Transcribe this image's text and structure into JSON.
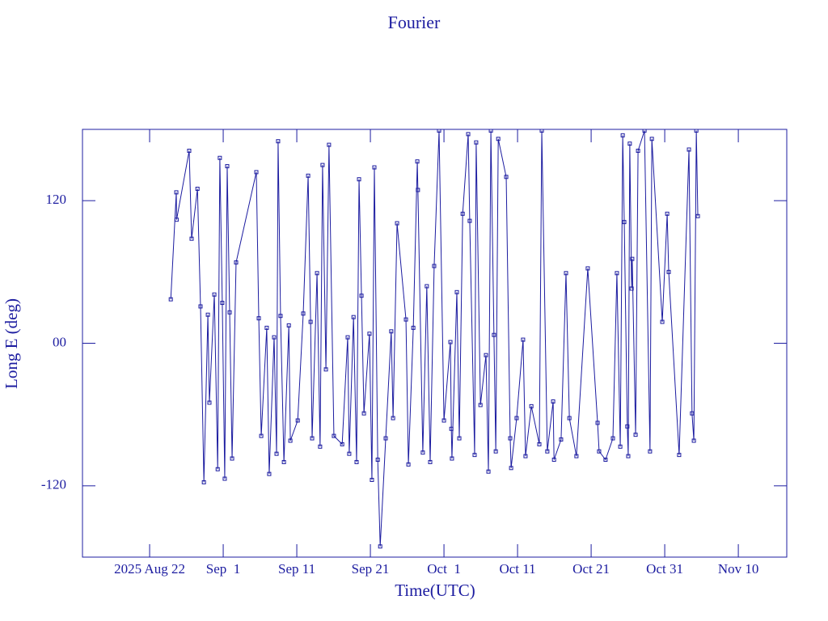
{
  "chart_data": {
    "type": "line",
    "title": "Fourier",
    "xlabel": "Time(UTC)",
    "ylabel": "Long E (deg)",
    "color": "#1c1ca0",
    "xlim": [
      "2025-08-12T21:00",
      "2025-11-16T14:00"
    ],
    "ylim": [
      -180,
      180
    ],
    "xticks": [
      {
        "value": "2025-08-22T00:00",
        "label": "2025 Aug 22"
      },
      {
        "value": "2025-09-01T00:00",
        "label": "Sep  1"
      },
      {
        "value": "2025-09-11T00:00",
        "label": "Sep 11"
      },
      {
        "value": "2025-09-21T00:00",
        "label": "Sep 21"
      },
      {
        "value": "2025-10-01T00:00",
        "label": "Oct  1"
      },
      {
        "value": "2025-10-11T00:00",
        "label": "Oct 11"
      },
      {
        "value": "2025-10-21T00:00",
        "label": "Oct 21"
      },
      {
        "value": "2025-10-31T00:00",
        "label": "Oct 31"
      },
      {
        "value": "2025-11-10T00:00",
        "label": "Nov 10"
      }
    ],
    "yticks": [
      -120,
      {
        "value": 0,
        "label": "00"
      },
      120
    ],
    "x": [
      "2025-08-24T21:00",
      "2025-08-25T15:00",
      "2025-08-25T16:00",
      "2025-08-27T09:00",
      "2025-08-27T17:00",
      "2025-08-28T12:00",
      "2025-08-28T22:00",
      "2025-08-29T09:00",
      "2025-08-29T22:00",
      "2025-08-30T03:00",
      "2025-08-30T19:00",
      "2025-08-31T06:00",
      "2025-08-31T13:00",
      "2025-08-31T21:00",
      "2025-09-01T05:00",
      "2025-09-01T13:00",
      "2025-09-01T21:00",
      "2025-09-02T05:00",
      "2025-09-02T18:00",
      "2025-09-05T12:00",
      "2025-09-05T20:00",
      "2025-09-06T04:00",
      "2025-09-06T22:00",
      "2025-09-07T06:00",
      "2025-09-07T22:00",
      "2025-09-08T06:00",
      "2025-09-08T11:00",
      "2025-09-08T19:00",
      "2025-09-09T06:00",
      "2025-09-09T22:00",
      "2025-09-10T03:00",
      "2025-09-11T03:00",
      "2025-09-11T21:00",
      "2025-09-12T13:00",
      "2025-09-12T21:00",
      "2025-09-13T02:00",
      "2025-09-13T18:00",
      "2025-09-14T04:00",
      "2025-09-14T12:00",
      "2025-09-14T23:00",
      "2025-09-15T09:00",
      "2025-09-16T01:00",
      "2025-09-17T04:00",
      "2025-09-17T22:00",
      "2025-09-18T03:00",
      "2025-09-18T17:00",
      "2025-09-19T03:00",
      "2025-09-19T11:00",
      "2025-09-19T19:00",
      "2025-09-20T03:00",
      "2025-09-20T21:00",
      "2025-09-21T05:00",
      "2025-09-21T13:00",
      "2025-09-22T00:00",
      "2025-09-22T08:00",
      "2025-09-23T02:00",
      "2025-09-23T20:00",
      "2025-09-24T02:00",
      "2025-09-24T15:00",
      "2025-09-25T20:00",
      "2025-09-26T04:00",
      "2025-09-26T20:00",
      "2025-09-27T09:00",
      "2025-09-27T11:00",
      "2025-09-28T03:00",
      "2025-09-28T16:00",
      "2025-09-29T03:00",
      "2025-09-29T16:00",
      "2025-09-30T08:00",
      "2025-10-01T00:00",
      "2025-10-01T21:00",
      "2025-10-02T00:00",
      "2025-10-02T02:00",
      "2025-10-02T18:00",
      "2025-10-03T02:00",
      "2025-10-03T13:00",
      "2025-10-04T07:00",
      "2025-10-04T12:00",
      "2025-10-05T04:00",
      "2025-10-05T09:00",
      "2025-10-05T23:00",
      "2025-10-06T17:00",
      "2025-10-07T01:00",
      "2025-10-07T09:00",
      "2025-10-07T19:00",
      "2025-10-08T01:00",
      "2025-10-08T09:00",
      "2025-10-09T11:00",
      "2025-10-10T00:00",
      "2025-10-10T03:00",
      "2025-10-10T21:00",
      "2025-10-11T18:00",
      "2025-10-12T02:00",
      "2025-10-12T21:00",
      "2025-10-13T23:00",
      "2025-10-14T07:00",
      "2025-10-15T01:00",
      "2025-10-15T20:00",
      "2025-10-15T23:00",
      "2025-10-16T22:00",
      "2025-10-17T14:00",
      "2025-10-18T01:00",
      "2025-10-19T00:00",
      "2025-10-20T13:00",
      "2025-10-21T21:00",
      "2025-10-22T02:00",
      "2025-10-22T23:00",
      "2025-10-23T23:00",
      "2025-10-24T12:00",
      "2025-10-24T23:00",
      "2025-10-25T07:00",
      "2025-10-25T12:00",
      "2025-10-25T22:00",
      "2025-10-26T01:00",
      "2025-10-26T06:00",
      "2025-10-26T12:00",
      "2025-10-26T14:00",
      "2025-10-27T01:00",
      "2025-10-27T09:00",
      "2025-10-28T06:00",
      "2025-10-29T00:00",
      "2025-10-29T06:00",
      "2025-10-30T16:00",
      "2025-10-31T08:00",
      "2025-10-31T13:00",
      "2025-11-01T23:00",
      "2025-11-03T07:00",
      "2025-11-03T17:00",
      "2025-11-03T23:00",
      "2025-11-04T07:00",
      "2025-11-04T12:00"
    ],
    "values": [
      37,
      127,
      104,
      162,
      88,
      130,
      31,
      -117,
      24,
      -50,
      41,
      -106,
      156,
      34,
      -114,
      149,
      26,
      -97,
      68,
      144,
      21,
      -78,
      13,
      -110,
      5,
      -93,
      170,
      23,
      -100,
      15,
      -82,
      -65,
      25,
      141,
      18,
      -80,
      59,
      -87,
      150,
      -22,
      167,
      -78,
      -85,
      5,
      -93,
      22,
      -100,
      138,
      40,
      -59,
      8,
      -115,
      148,
      -98,
      -171,
      -80,
      10,
      -63,
      101,
      20,
      -102,
      13,
      153,
      129,
      -92,
      48,
      -100,
      65,
      179,
      -65,
      1,
      -72,
      -97,
      43,
      -80,
      109,
      176,
      103,
      -94,
      169,
      -52,
      -10,
      -108,
      179,
      7,
      -91,
      172,
      140,
      -80,
      -105,
      -63,
      3,
      -95,
      -53,
      -85,
      179,
      -91,
      -49,
      -98,
      -81,
      59,
      -63,
      -95,
      63,
      -67,
      -91,
      -98,
      -80,
      59,
      -87,
      175,
      102,
      -70,
      -95,
      168,
      46,
      71,
      -77,
      162,
      179,
      -91,
      172,
      18,
      109,
      60,
      -94,
      163,
      -59,
      -82,
      179,
      107
    ]
  }
}
